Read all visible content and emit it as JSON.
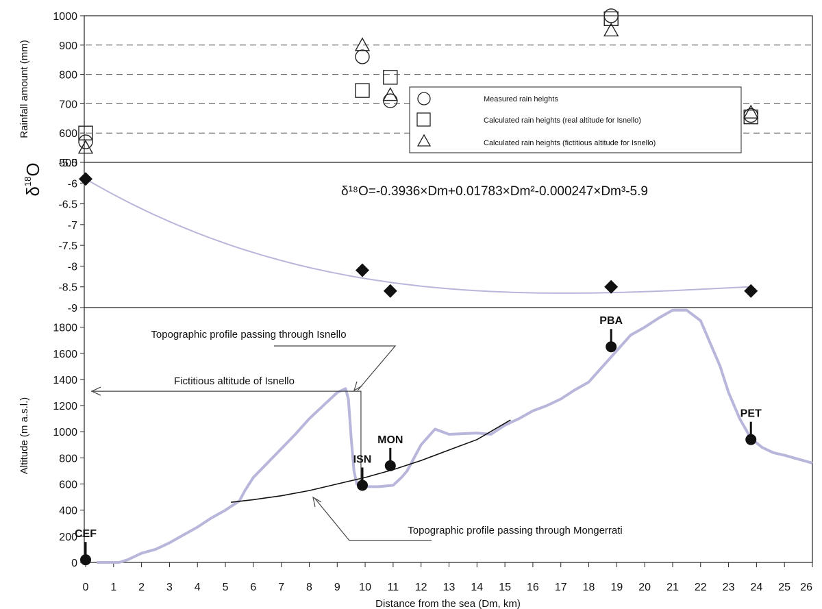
{
  "chart_data": [
    {
      "type": "scatter",
      "panel": "rainfall",
      "ylabel": "Rainfall amount (mm)",
      "ylim": [
        500,
        1000
      ],
      "yticks": [
        500,
        600,
        700,
        800,
        900,
        1000
      ],
      "grid": "dashed horizontal at 600, 700, 800, 900",
      "legend_position": "right",
      "series": [
        {
          "name": "Measured rain heights",
          "marker": "circle",
          "points": [
            {
              "x": 0,
              "y": 570
            },
            {
              "x": 9.9,
              "y": 860
            },
            {
              "x": 10.9,
              "y": 710
            },
            {
              "x": 18.8,
              "y": 1000
            },
            {
              "x": 23.8,
              "y": 660
            }
          ]
        },
        {
          "name": "Calculated rain heights (real altitude for Isnello)",
          "marker": "square",
          "points": [
            {
              "x": 0,
              "y": 600
            },
            {
              "x": 9.9,
              "y": 745
            },
            {
              "x": 10.9,
              "y": 790
            },
            {
              "x": 18.8,
              "y": 990
            },
            {
              "x": 23.8,
              "y": 655
            }
          ]
        },
        {
          "name": "Calculated rain heights (fictitious altitude for Isnello)",
          "marker": "triangle",
          "points": [
            {
              "x": 0,
              "y": 550
            },
            {
              "x": 9.9,
              "y": 900
            },
            {
              "x": 10.9,
              "y": 730
            },
            {
              "x": 18.8,
              "y": 950
            },
            {
              "x": 23.8,
              "y": 670
            }
          ]
        }
      ]
    },
    {
      "type": "scatter",
      "panel": "isotope",
      "ylabel_main": "δ",
      "ylabel_sup": "18",
      "ylabel_tail": "O",
      "ylim": [
        -9,
        -5.5
      ],
      "yticks": [
        "-5.5",
        "-6",
        "-6.5",
        "-7",
        "-7.5",
        "-8",
        "-8.5",
        "-9"
      ],
      "equation": "δ¹⁸O=-0.3936×Dm+0.01783×Dm²-0.000247×Dm³-5.9",
      "fit": {
        "a1": -0.3936,
        "a2": 0.01783,
        "a3": -0.000247,
        "c": -5.9,
        "xmax": 23.8
      },
      "points": [
        {
          "x": 0,
          "y": -5.9
        },
        {
          "x": 9.9,
          "y": -8.1
        },
        {
          "x": 10.9,
          "y": -8.6
        },
        {
          "x": 18.8,
          "y": -8.5
        },
        {
          "x": 23.8,
          "y": -8.6
        }
      ]
    },
    {
      "type": "line",
      "panel": "altitude",
      "ylabel": "Altitude (m a.s.l.)",
      "xlabel": "Distance from the sea (Dm, km)",
      "xlim": [
        0,
        26
      ],
      "xticks": [
        "0",
        "1",
        "2",
        "3",
        "4",
        "5",
        "6",
        "7",
        "8",
        "9",
        "10",
        "11",
        "12",
        "13",
        "14",
        "15",
        "16",
        "17",
        "18",
        "19",
        "20",
        "21",
        "22",
        "23",
        "24",
        "25",
        "26"
      ],
      "ylim": [
        0,
        1950
      ],
      "yticks": [
        0,
        200,
        400,
        600,
        800,
        1000,
        1200,
        1400,
        1600,
        1800
      ],
      "series": [
        {
          "id": "isnello_profile",
          "style": "thick lavender",
          "x": [
            0.4,
            1.2,
            1.5,
            2.0,
            2.5,
            3.0,
            3.5,
            4.0,
            4.5,
            5.0,
            5.5,
            5.7,
            6.0,
            6.5,
            7.0,
            7.5,
            8.0,
            8.5,
            9.0,
            9.3,
            9.4,
            9.5,
            9.6,
            9.7,
            9.8,
            10.0,
            10.5,
            11.0,
            11.3,
            11.5,
            12.0,
            12.5,
            13.0,
            14.0,
            14.5,
            15.0,
            15.5,
            16.0,
            16.5,
            17.0,
            17.5,
            18.0,
            18.5,
            19.0,
            19.5,
            20.0,
            20.5,
            21.0,
            21.5,
            22.0,
            22.3,
            22.7,
            23.0,
            23.4,
            23.8,
            24.2,
            24.6,
            25.0,
            25.5,
            26.0
          ],
          "y": [
            0,
            0,
            20,
            70,
            100,
            150,
            210,
            270,
            340,
            400,
            470,
            550,
            650,
            760,
            870,
            980,
            1100,
            1200,
            1300,
            1330,
            1250,
            950,
            700,
            600,
            600,
            580,
            580,
            590,
            650,
            700,
            900,
            1020,
            980,
            990,
            980,
            1050,
            1100,
            1160,
            1200,
            1250,
            1320,
            1380,
            1500,
            1620,
            1740,
            1800,
            1870,
            1930,
            1930,
            1850,
            1700,
            1500,
            1300,
            1100,
            950,
            880,
            840,
            820,
            790,
            760
          ]
        },
        {
          "id": "mongerrati_profile",
          "style": "thin black",
          "x": [
            5.2,
            6,
            7,
            8,
            9,
            10,
            11,
            12,
            13,
            14,
            15.2
          ],
          "y": [
            460,
            480,
            510,
            550,
            600,
            650,
            710,
            780,
            860,
            940,
            1090
          ]
        }
      ],
      "stations": [
        {
          "label": "CEF",
          "x": 0,
          "y": 20
        },
        {
          "label": "ISN",
          "x": 9.9,
          "y": 590
        },
        {
          "label": "MON",
          "x": 10.9,
          "y": 740
        },
        {
          "label": "PBA",
          "x": 18.8,
          "y": 1650
        },
        {
          "label": "PET",
          "x": 23.8,
          "y": 940
        }
      ],
      "annotations": {
        "isnello_profile": "Topographic profile passing through Isnello",
        "fictitious_altitude": "Fictitious altitude of Isnello",
        "mongerrati_profile": "Topographic profile passing through Mongerrati",
        "fictitious_altitude_value": 1310
      }
    }
  ]
}
